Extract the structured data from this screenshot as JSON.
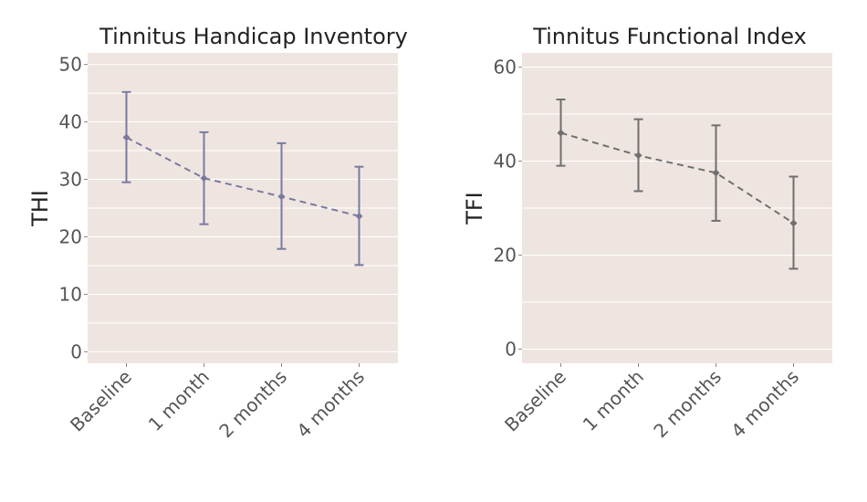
{
  "chart_data": [
    {
      "type": "line",
      "title": "Tinnitus Handicap Inventory",
      "ylabel": "THI",
      "xlabel": "",
      "categories": [
        "Baseline",
        "1 month",
        "2 months",
        "4 months"
      ],
      "ylim": [
        -2,
        52
      ],
      "yticks": [
        0,
        10,
        20,
        30,
        40,
        50
      ],
      "grid": true,
      "series": [
        {
          "values": [
            37.3,
            30.2,
            27.0,
            23.6
          ],
          "error_low": [
            29.5,
            22.2,
            17.9,
            15.1
          ],
          "error_high": [
            45.2,
            38.2,
            36.3,
            32.2
          ],
          "line_style": "dashed",
          "color": "#7a7aa0"
        }
      ],
      "background": "#efe5e0"
    },
    {
      "type": "line",
      "title": "Tinnitus Functional Index",
      "ylabel": "TFI",
      "xlabel": "",
      "categories": [
        "Baseline",
        "1 month",
        "2 months",
        "4 months"
      ],
      "ylim": [
        -3,
        63
      ],
      "yticks": [
        0,
        20,
        40,
        60
      ],
      "grid": true,
      "series": [
        {
          "values": [
            46.0,
            41.2,
            37.5,
            26.8
          ],
          "error_low": [
            39.0,
            33.6,
            27.3,
            17.1
          ],
          "error_high": [
            53.1,
            48.9,
            47.6,
            36.7
          ],
          "line_style": "dashed",
          "color": "#6f6f6f"
        }
      ],
      "background": "#efe5e0"
    }
  ]
}
